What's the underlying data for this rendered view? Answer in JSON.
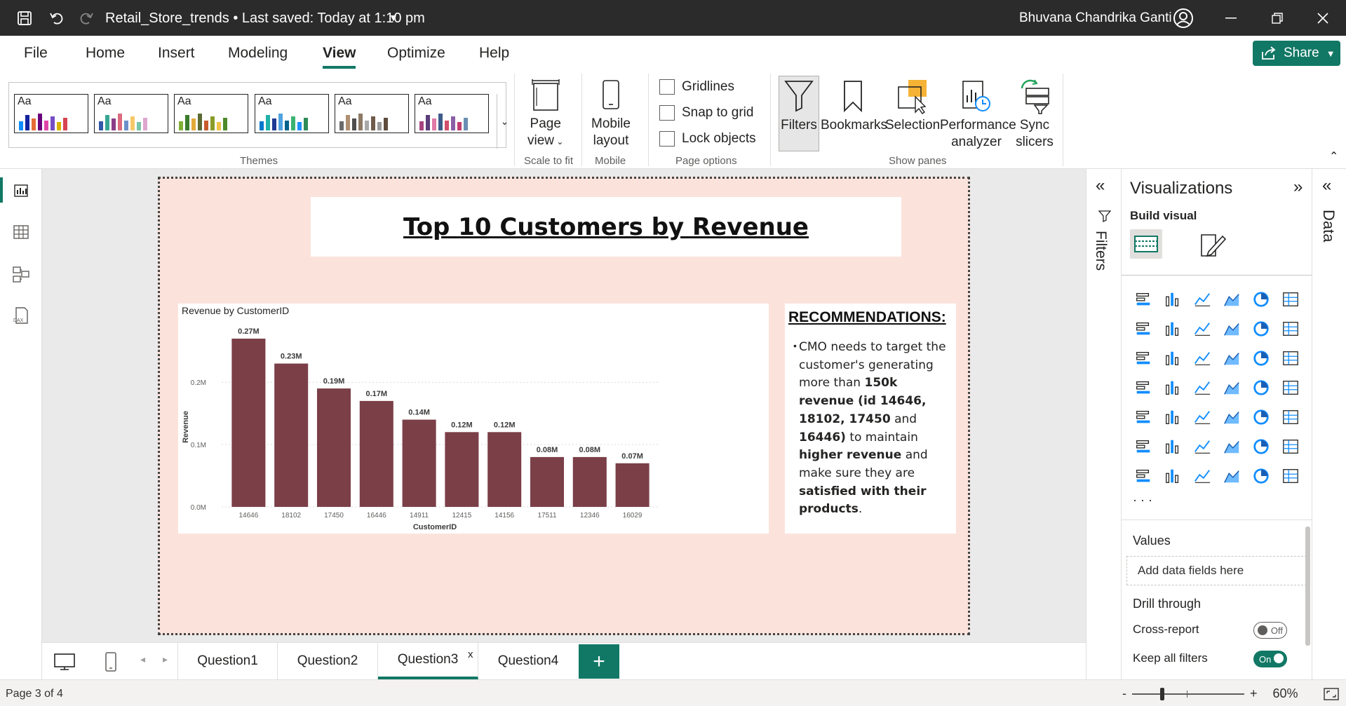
{
  "titlebar": {
    "doc_title": "Retail_Store_trends • Last saved: Today at 1:10 pm",
    "user_name": "Bhuvana Chandrika Ganti"
  },
  "menu": {
    "items": [
      "File",
      "Home",
      "Insert",
      "Modeling",
      "View",
      "Optimize",
      "Help"
    ],
    "active": "View",
    "share_label": "Share"
  },
  "ribbon": {
    "theme_label": "Aa",
    "theme_palettes": [
      [
        "#118dff",
        "#12239e",
        "#e66c37",
        "#6b007b",
        "#e044a7",
        "#744ec2",
        "#d9b300",
        "#d64550"
      ],
      [
        "#3257a8",
        "#37a794",
        "#8b3d88",
        "#dd6b7f",
        "#6b91c9",
        "#f5c869",
        "#77c4a8",
        "#dea6cf"
      ],
      [
        "#7fb035",
        "#3a7c2d",
        "#e3a93a",
        "#5c6b34",
        "#c85b2d",
        "#8a9b2a",
        "#f0c247",
        "#4d8b2a"
      ],
      [
        "#0077cc",
        "#20b2aa",
        "#1f3a93",
        "#4fa3e0",
        "#00628b",
        "#3cb371",
        "#1e90ff",
        "#2e8b57"
      ],
      [
        "#6b6b6b",
        "#b09070",
        "#4d4d4d",
        "#8c7a66",
        "#a8a8a8",
        "#705c4b",
        "#999999",
        "#5e4b3c"
      ],
      [
        "#a6437e",
        "#5b3d7a",
        "#e07aa6",
        "#3e5c8a",
        "#d14f6a",
        "#8a5fa6",
        "#c23c70",
        "#6b8fb3"
      ]
    ],
    "groups": {
      "themes": "Themes",
      "scale_to_fit": "Scale to fit",
      "mobile": "Mobile",
      "page_options": "Page options",
      "show_panes": "Show panes"
    },
    "page_view": [
      "Page",
      "view"
    ],
    "mobile_layout": [
      "Mobile",
      "layout"
    ],
    "checkboxes": [
      "Gridlines",
      "Snap to grid",
      "Lock objects"
    ],
    "panes": {
      "filters": "Filters",
      "bookmarks": "Bookmarks",
      "selection": "Selection",
      "performance": [
        "Performance",
        "analyzer"
      ],
      "sync": [
        "Sync",
        "slicers"
      ]
    }
  },
  "report": {
    "title": "Top 10 Customers by Revenue",
    "recommendations_title": "RECOMMENDATIONS:",
    "reco": {
      "p1": "CMO needs to target the customer's generating more than ",
      "b1": "150k revenue (id 14646, 18102, 17450",
      "p2": " and ",
      "b2": "16446)",
      "p3": " to maintain ",
      "b3": "higher revenue",
      "p4": " and make sure they are ",
      "b4": "satisfied with their products",
      "p5": "."
    }
  },
  "chart_data": {
    "type": "bar",
    "title": "Revenue by CustomerID",
    "xlabel": "CustomerID",
    "ylabel": "Revenue",
    "categories": [
      "14646",
      "18102",
      "17450",
      "16446",
      "14911",
      "12415",
      "14156",
      "17511",
      "12346",
      "16029"
    ],
    "values": [
      0.27,
      0.23,
      0.19,
      0.17,
      0.14,
      0.12,
      0.12,
      0.08,
      0.08,
      0.07
    ],
    "data_labels": [
      "0.27M",
      "0.23M",
      "0.19M",
      "0.17M",
      "0.14M",
      "0.12M",
      "0.12M",
      "0.08M",
      "0.08M",
      "0.07M"
    ],
    "y_ticks": [
      0.0,
      0.1,
      0.2
    ],
    "y_tick_labels": [
      "0.0M",
      "0.1M",
      "0.2M"
    ],
    "ylim": [
      0,
      0.27
    ],
    "bar_color": "#7b3f47",
    "grid": true,
    "legend": "none"
  },
  "filters_pane": {
    "label": "Filters"
  },
  "viz_pane": {
    "title": "Visualizations",
    "build_visual": "Build visual",
    "values_label": "Values",
    "add_fields": "Add data fields here",
    "drill_through": "Drill through",
    "cross_report": "Cross-report",
    "cross_report_state": "Off",
    "keep_all_filters": "Keep all filters",
    "keep_all_filters_state": "On",
    "more": "· · ·"
  },
  "data_pane": {
    "label": "Data"
  },
  "tabs": {
    "pages": [
      "Question1",
      "Question2",
      "Question3",
      "Question4"
    ],
    "active": "Question3",
    "close": "x",
    "add": "+"
  },
  "status": {
    "page_info": "Page 3 of 4",
    "zoom": "60%",
    "minus": "-",
    "plus": "+"
  },
  "colors": {
    "accent": "#117865",
    "titlebar": "#2b2b2b",
    "page_bg": "#fbe3dc"
  }
}
